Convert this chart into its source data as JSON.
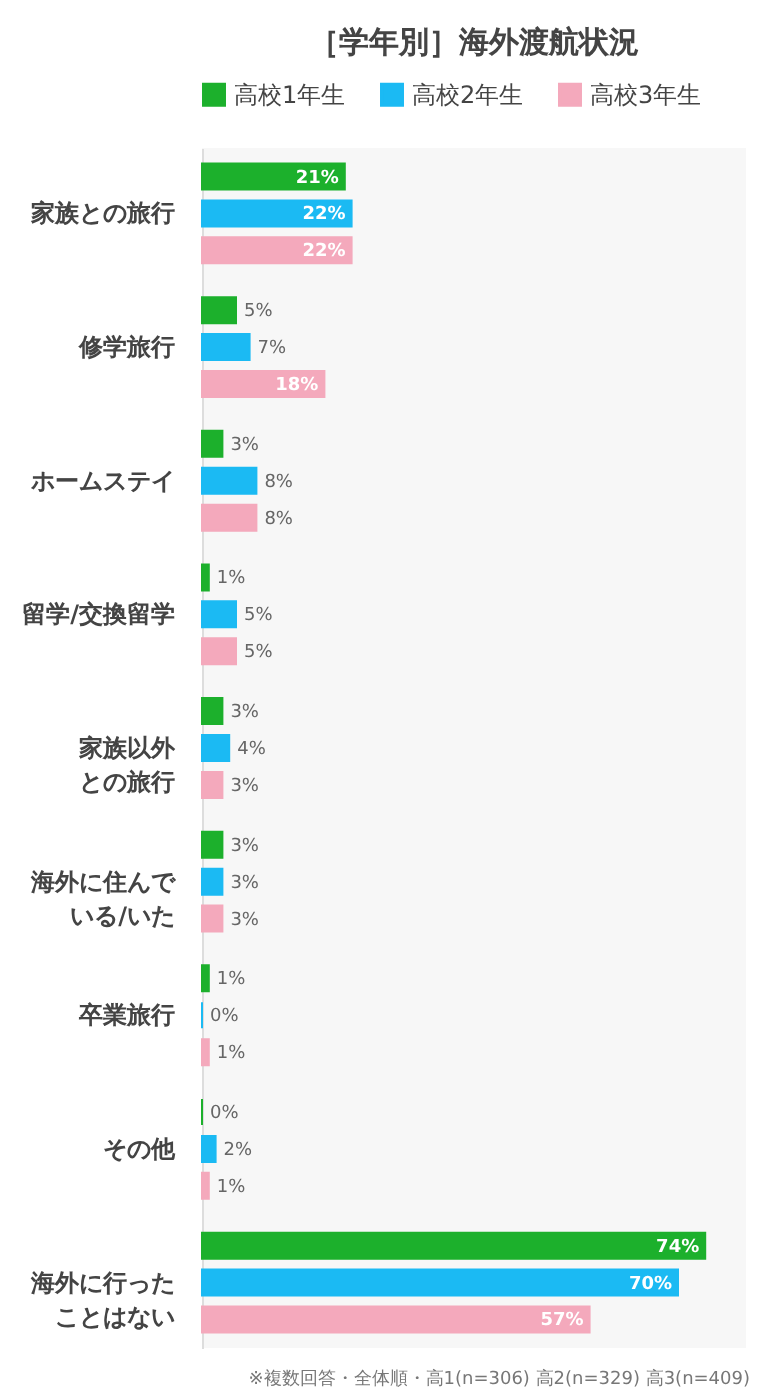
{
  "chart_data": {
    "type": "bar",
    "orientation": "horizontal",
    "title": "［学年別］海外渡航状況",
    "categories": [
      "家族との旅行",
      "修学旅行",
      "ホームステイ",
      "留学/交換留学",
      "家族以外との旅行",
      "海外に住んでいる/いた",
      "卒業旅行",
      "その他",
      "海外に行ったことはない"
    ],
    "series": [
      {
        "name": "高校1年生",
        "color": "#1cb02c",
        "values": [
          21,
          5,
          3,
          1,
          3,
          3,
          1,
          0,
          74
        ],
        "value_labels": [
          "21%",
          "5%",
          "3%",
          "1%",
          "3%",
          "3%",
          "1%",
          "0%",
          "74%"
        ]
      },
      {
        "name": "高校2年生",
        "color": "#1bbaf3",
        "values": [
          22,
          7,
          8,
          5,
          4,
          3,
          0,
          2,
          70
        ],
        "value_labels": [
          "22%",
          "7%",
          "8%",
          "5%",
          "4%",
          "3%",
          "0%",
          "2%",
          "70%"
        ]
      },
      {
        "name": "高校3年生",
        "color": "#f4a9bc",
        "values": [
          22,
          18,
          8,
          5,
          3,
          3,
          1,
          1,
          57
        ],
        "value_labels": [
          "22%",
          "18%",
          "8%",
          "5%",
          "3%",
          "3%",
          "1%",
          "1%",
          "57%"
        ]
      }
    ],
    "xlim": [
      0,
      80
    ],
    "legend": "top",
    "annotations": [
      "※複数回答・全体順・高1(n=306) 高2(n=329) 高3(n=409)"
    ]
  }
}
